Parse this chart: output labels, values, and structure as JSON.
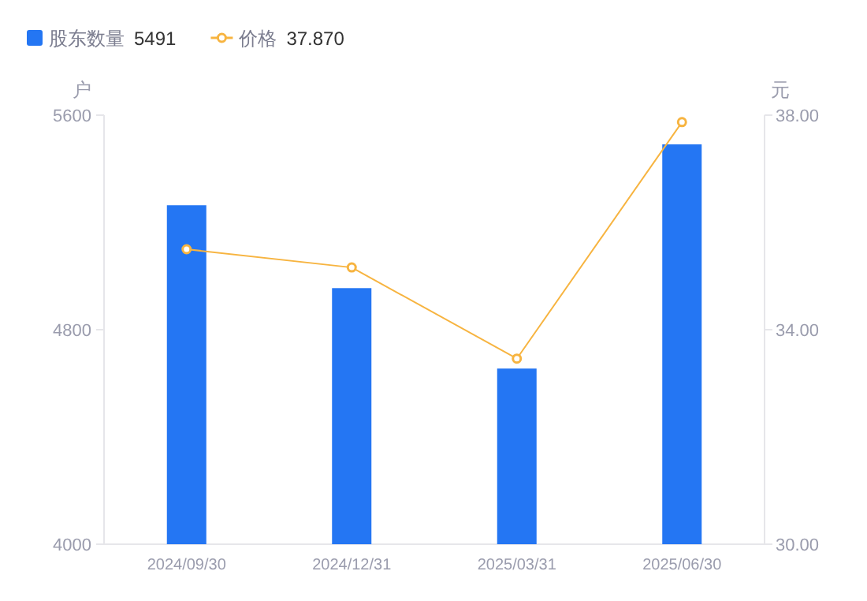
{
  "chart_data": {
    "type": "bar",
    "categories": [
      "2024/09/30",
      "2024/12/31",
      "2025/03/31",
      "2025/06/30"
    ],
    "series": [
      {
        "name": "股东数量",
        "color": "#2476f3",
        "values": [
          5264,
          4955,
          4655,
          5491
        ]
      },
      {
        "name": "价格",
        "color": "#f7b440",
        "type": "line",
        "axis": "y2",
        "marker": "circle",
        "values": [
          35.5,
          35.16,
          33.46,
          37.87
        ]
      }
    ],
    "ylabel": "户",
    "y2label": "元",
    "ylim": [
      4000,
      5600
    ],
    "yticks": [
      4000,
      4800,
      5600
    ],
    "y2lim": [
      30,
      38
    ],
    "y2ticks": [
      {
        "value": 30,
        "label": "30.00"
      },
      {
        "value": 34,
        "label": "34.00"
      },
      {
        "value": 38,
        "label": "38.00"
      }
    ],
    "legend": "top left",
    "annotations": [
      "5491",
      "37.870"
    ]
  }
}
